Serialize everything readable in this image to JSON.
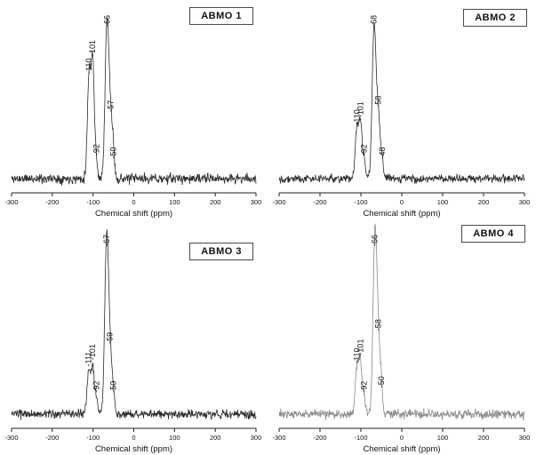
{
  "figure": {
    "background": "#ffffff",
    "text_color": "#111111"
  },
  "chart_data": [
    {
      "type": "line",
      "title": "ABMO 1",
      "xlabel": "Chemical shift (ppm)",
      "xlim": [
        -300,
        300
      ],
      "xticks": [
        -300,
        -200,
        -100,
        0,
        100,
        200,
        300
      ],
      "line_color": "#2b2b2b",
      "noise": 0.05,
      "seed": 11,
      "peaks": [
        {
          "ppm": -110,
          "rel_height": 0.68,
          "width": 4,
          "label": "-110"
        },
        {
          "ppm": -101,
          "rel_height": 0.8,
          "width": 4,
          "label": "-101"
        },
        {
          "ppm": -92,
          "rel_height": 0.12,
          "width": 3,
          "label": "-92"
        },
        {
          "ppm": -66,
          "rel_height": 1.0,
          "width": 4.5,
          "label": "-66"
        },
        {
          "ppm": -57,
          "rel_height": 0.42,
          "width": 5,
          "label": "-57"
        },
        {
          "ppm": -50,
          "rel_height": 0.1,
          "width": 3,
          "label": "-50"
        }
      ]
    },
    {
      "type": "line",
      "title": "ABMO 2",
      "xlabel": "Chemical shift (ppm)",
      "xlim": [
        -300,
        300
      ],
      "xticks": [
        -300,
        -200,
        -100,
        0,
        100,
        200,
        300
      ],
      "line_color": "#2b2b2b",
      "noise": 0.04,
      "seed": 22,
      "peaks": [
        {
          "ppm": -110,
          "rel_height": 0.33,
          "width": 4,
          "label": "-110"
        },
        {
          "ppm": -101,
          "rel_height": 0.38,
          "width": 4,
          "label": "-101"
        },
        {
          "ppm": -92,
          "rel_height": 0.12,
          "width": 3,
          "label": "-92"
        },
        {
          "ppm": -68,
          "rel_height": 1.0,
          "width": 4.5,
          "label": "-68"
        },
        {
          "ppm": -58,
          "rel_height": 0.45,
          "width": 5,
          "label": "-58"
        },
        {
          "ppm": -48,
          "rel_height": 0.1,
          "width": 3,
          "label": "-48"
        }
      ]
    },
    {
      "type": "line",
      "title": "ABMO 3",
      "xlabel": "Chemical shift (ppm)",
      "xlim": [
        -300,
        300
      ],
      "xticks": [
        -300,
        -200,
        -100,
        0,
        100,
        200,
        300
      ],
      "line_color": "#2b2b2b",
      "noise": 0.04,
      "seed": 33,
      "peaks": [
        {
          "ppm": -111,
          "rel_height": 0.26,
          "width": 4,
          "label": "-111"
        },
        {
          "ppm": -101,
          "rel_height": 0.3,
          "width": 4,
          "label": "-101"
        },
        {
          "ppm": -92,
          "rel_height": 0.1,
          "width": 3,
          "label": "-92"
        },
        {
          "ppm": -67,
          "rel_height": 1.0,
          "width": 4.5,
          "label": "-67"
        },
        {
          "ppm": -59,
          "rel_height": 0.4,
          "width": 5,
          "label": "-59"
        },
        {
          "ppm": -50,
          "rel_height": 0.1,
          "width": 3,
          "label": "-50"
        }
      ]
    },
    {
      "type": "line",
      "title": "ABMO 4",
      "xlabel": "Chemical shift (ppm)",
      "xlim": [
        -300,
        300
      ],
      "xticks": [
        -300,
        -200,
        -100,
        0,
        100,
        200,
        300
      ],
      "line_color": "#8a8a8a",
      "noise": 0.045,
      "seed": 44,
      "peaks": [
        {
          "ppm": -110,
          "rel_height": 0.28,
          "width": 4,
          "label": "-110"
        },
        {
          "ppm": -101,
          "rel_height": 0.33,
          "width": 4,
          "label": "-101"
        },
        {
          "ppm": -92,
          "rel_height": 0.1,
          "width": 3,
          "label": "-92"
        },
        {
          "ppm": -66,
          "rel_height": 1.0,
          "width": 4.5,
          "label": "-66"
        },
        {
          "ppm": -58,
          "rel_height": 0.48,
          "width": 5,
          "label": "-58"
        },
        {
          "ppm": -50,
          "rel_height": 0.13,
          "width": 3,
          "label": "-50"
        }
      ]
    }
  ]
}
